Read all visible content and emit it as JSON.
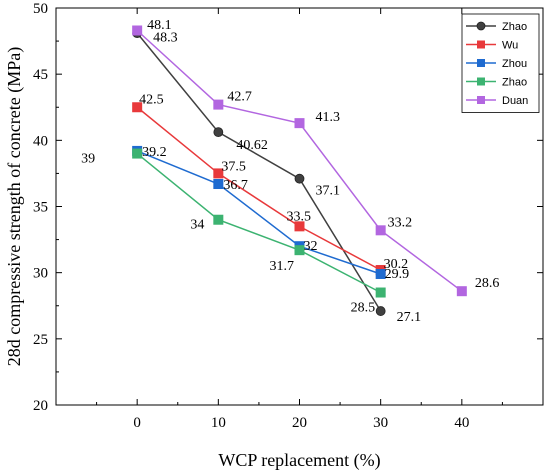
{
  "chart_data": {
    "type": "line",
    "xlabel": "WCP replacement (%)",
    "ylabel": "28d compressive strength of concrete (MPa)",
    "xlim": [
      -10,
      50
    ],
    "ylim": [
      20,
      50
    ],
    "xticks": [
      0,
      10,
      20,
      30,
      40
    ],
    "yticks": [
      20,
      25,
      30,
      35,
      40,
      45,
      50
    ],
    "grid": false,
    "legend": "top-right",
    "series": [
      {
        "name": "Zhao",
        "color": "#404040",
        "marker": "circle",
        "points": [
          {
            "x": 0,
            "y": 48.1,
            "label": "48.1",
            "dx": 10,
            "dy": -4
          },
          {
            "x": 10,
            "y": 40.62,
            "label": "40.62",
            "dx": 18,
            "dy": 17
          },
          {
            "x": 20,
            "y": 37.1,
            "label": "37.1",
            "dx": 16,
            "dy": 16
          },
          {
            "x": 30,
            "y": 27.1,
            "label": "27.1",
            "dx": 16,
            "dy": 10
          }
        ]
      },
      {
        "name": "Wu",
        "color": "#e8393b",
        "marker": "square",
        "points": [
          {
            "x": 0,
            "y": 42.5,
            "label": "42.5",
            "dx": 2,
            "dy": -4
          },
          {
            "x": 10,
            "y": 37.5,
            "label": "37.5",
            "dx": 3,
            "dy": -3
          },
          {
            "x": 20,
            "y": 33.5,
            "label": "33.5",
            "dx": -13,
            "dy": -6
          },
          {
            "x": 30,
            "y": 30.2,
            "label": "30.2",
            "dx": 3,
            "dy": -2
          }
        ]
      },
      {
        "name": "Zhou",
        "color": "#1f6bd0",
        "marker": "square",
        "points": [
          {
            "x": 0,
            "y": 39.2,
            "label": "39.2",
            "dx": 5,
            "dy": 5
          },
          {
            "x": 10,
            "y": 36.7,
            "label": "36.7",
            "dx": 5,
            "dy": 5
          },
          {
            "x": 20,
            "y": 32,
            "label": "32",
            "dx": 4,
            "dy": 4
          },
          {
            "x": 30,
            "y": 29.9,
            "label": "29.9",
            "dx": 4,
            "dy": 4
          }
        ]
      },
      {
        "name": "Zhao",
        "color": "#3cb371",
        "marker": "square",
        "points": [
          {
            "x": 0,
            "y": 39,
            "label": "39",
            "dx": -56,
            "dy": 9
          },
          {
            "x": 10,
            "y": 34,
            "label": "34",
            "dx": -28,
            "dy": 9
          },
          {
            "x": 20,
            "y": 31.7,
            "label": "31.7",
            "dx": -30,
            "dy": 20
          },
          {
            "x": 30,
            "y": 28.5,
            "label": "28.5",
            "dx": -30,
            "dy": 19
          }
        ]
      },
      {
        "name": "Duan",
        "color": "#b266e0",
        "marker": "square",
        "points": [
          {
            "x": 0,
            "y": 48.3,
            "label": "48.3",
            "dx": 16,
            "dy": 11
          },
          {
            "x": 10,
            "y": 42.7,
            "label": "42.7",
            "dx": 9,
            "dy": -4
          },
          {
            "x": 20,
            "y": 41.3,
            "label": "41.3",
            "dx": 16,
            "dy": -2
          },
          {
            "x": 30,
            "y": 33.2,
            "label": "33.2",
            "dx": 7,
            "dy": -4
          },
          {
            "x": 40,
            "y": 28.6,
            "label": "28.6",
            "dx": 13,
            "dy": -4
          }
        ]
      }
    ]
  }
}
